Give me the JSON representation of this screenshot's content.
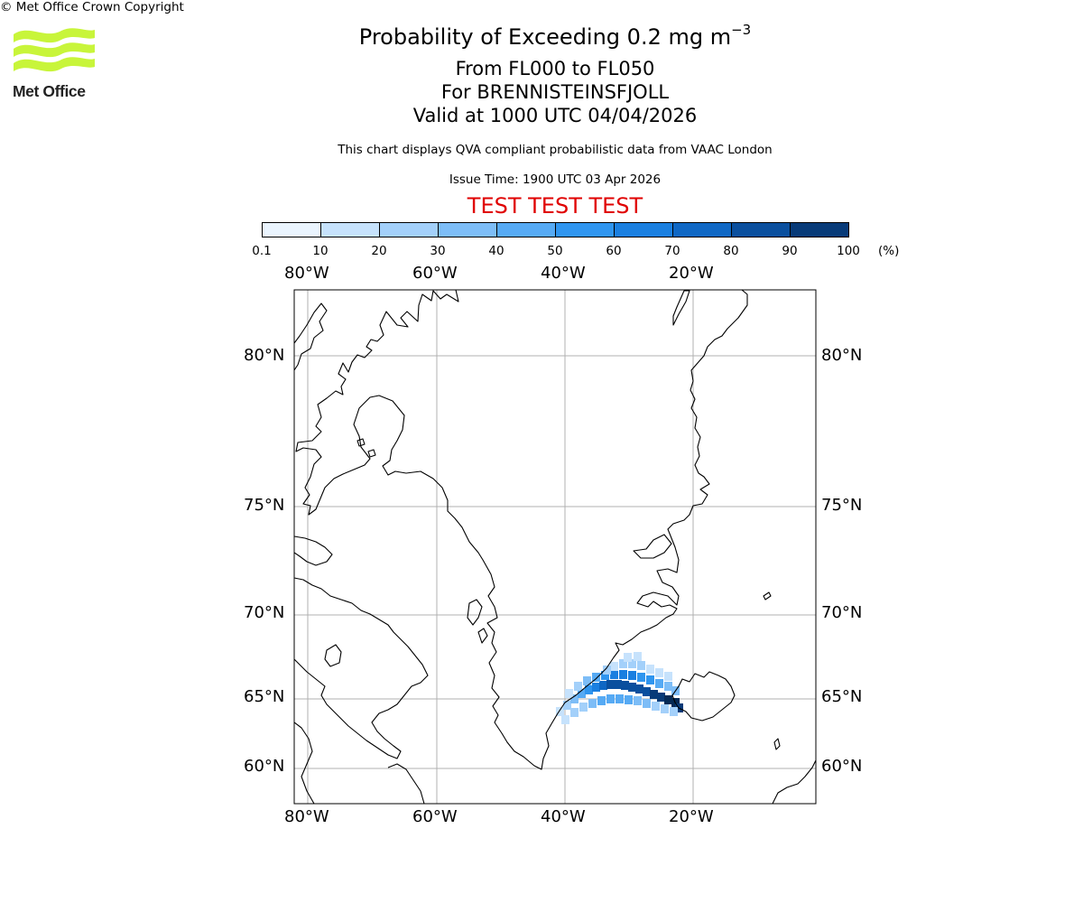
{
  "header": {
    "title_main": "Probability of Exceeding 0.2 mg m",
    "title_sup": "−3",
    "flight_levels": "From FL000 to FL050",
    "volcano": "For BRENNISTEINSFJOLL",
    "valid_time": "Valid at 1000 UTC 04/04/2026",
    "disclaimer": "This chart displays QVA compliant probabilistic data from VAAC London",
    "issue_time": "Issue Time: 1900 UTC 03 Apr 2026",
    "test_banner": "TEST TEST TEST"
  },
  "logo": {
    "text": "Met Office",
    "color": "#c8f53a"
  },
  "colorbar": {
    "ticks": [
      "0.1",
      "10",
      "20",
      "30",
      "40",
      "50",
      "60",
      "70",
      "80",
      "90",
      "100"
    ],
    "unit": "(%)",
    "colors": [
      "#eaf4fe",
      "#c6e2fc",
      "#a3d0fa",
      "#7dbdf7",
      "#56aaf4",
      "#2f95ef",
      "#1a7fe0",
      "#0f67c4",
      "#0a4f9e",
      "#073a78",
      "#052a55"
    ]
  },
  "map": {
    "lon_labels": [
      "80°W",
      "60°W",
      "40°W",
      "20°W"
    ],
    "lat_labels": [
      "80°N",
      "75°N",
      "70°N",
      "65°N",
      "60°N"
    ],
    "plume": [
      [
        620,
        788,
        1
      ],
      [
        628,
        781,
        2
      ],
      [
        636,
        774,
        3
      ],
      [
        644,
        768,
        4
      ],
      [
        652,
        764,
        5
      ],
      [
        660,
        761,
        6
      ],
      [
        668,
        759,
        7
      ],
      [
        676,
        758,
        8
      ],
      [
        684,
        758,
        8
      ],
      [
        692,
        759,
        8
      ],
      [
        700,
        761,
        8
      ],
      [
        708,
        763,
        8
      ],
      [
        716,
        766,
        8
      ],
      [
        724,
        769,
        9
      ],
      [
        732,
        772,
        9
      ],
      [
        740,
        775,
        10
      ],
      [
        748,
        778,
        10
      ],
      [
        752,
        784,
        9
      ],
      [
        630,
        768,
        1
      ],
      [
        640,
        760,
        2
      ],
      [
        650,
        754,
        3
      ],
      [
        660,
        750,
        4
      ],
      [
        670,
        748,
        5
      ],
      [
        680,
        747,
        6
      ],
      [
        690,
        747,
        6
      ],
      [
        700,
        748,
        6
      ],
      [
        710,
        750,
        5
      ],
      [
        720,
        753,
        5
      ],
      [
        730,
        757,
        4
      ],
      [
        740,
        760,
        3
      ],
      [
        748,
        765,
        3
      ],
      [
        626,
        797,
        1
      ],
      [
        636,
        789,
        2
      ],
      [
        646,
        783,
        2
      ],
      [
        656,
        779,
        3
      ],
      [
        666,
        776,
        4
      ],
      [
        676,
        774,
        4
      ],
      [
        686,
        774,
        4
      ],
      [
        696,
        775,
        4
      ],
      [
        706,
        776,
        3
      ],
      [
        716,
        779,
        3
      ],
      [
        726,
        782,
        2
      ],
      [
        736,
        785,
        2
      ],
      [
        746,
        788,
        2
      ],
      [
        680,
        738,
        1
      ],
      [
        690,
        735,
        2
      ],
      [
        700,
        735,
        2
      ],
      [
        710,
        737,
        2
      ],
      [
        720,
        741,
        1
      ],
      [
        730,
        745,
        1
      ],
      [
        740,
        749,
        1
      ],
      [
        695,
        728,
        1
      ],
      [
        706,
        727,
        1
      ],
      [
        672,
        742,
        2
      ]
    ]
  },
  "footer": {
    "copyright": "© Met Office Crown Copyright"
  }
}
